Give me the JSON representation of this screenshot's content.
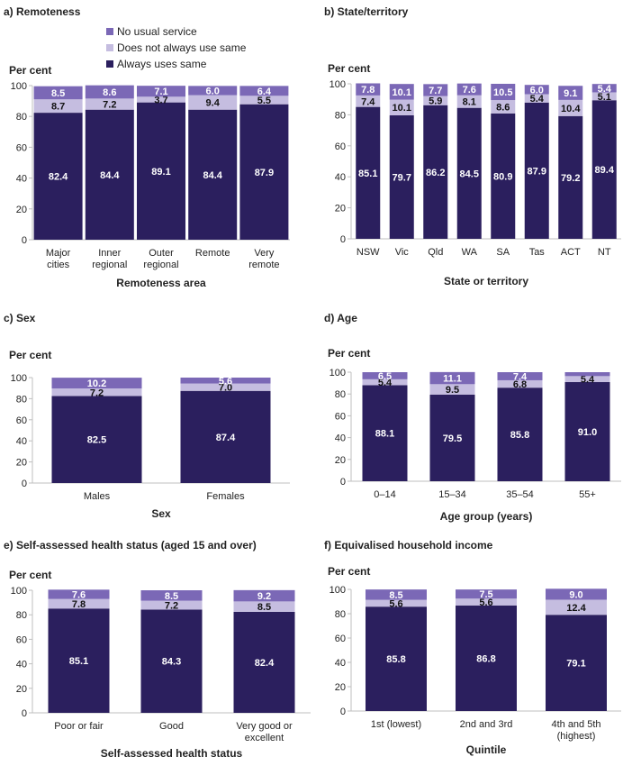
{
  "colors": {
    "always": "#2b1f5e",
    "not_always": "#c5bde0",
    "no_service": "#7b68b6",
    "axis": "#bfbfbf",
    "text": "#222222"
  },
  "legend": [
    {
      "key": "no_service",
      "label": "No usual service"
    },
    {
      "key": "not_always",
      "label": "Does not always use same"
    },
    {
      "key": "always",
      "label": "Always uses same"
    }
  ],
  "chart_data": [
    {
      "type": "bar",
      "title": "a) Remoteness",
      "ylabel": "Per cent",
      "xlabel": "Remoteness area",
      "ylim": [
        0,
        100
      ],
      "yticks": [
        0,
        20,
        40,
        60,
        80,
        100
      ],
      "categories": [
        [
          "Major",
          "cities"
        ],
        [
          "Inner",
          "regional"
        ],
        [
          "Outer",
          "regional"
        ],
        [
          "Remote"
        ],
        [
          "Very",
          "remote"
        ]
      ],
      "series": [
        {
          "name": "Always uses same",
          "key": "always",
          "values": [
            82.4,
            84.4,
            89.1,
            84.4,
            87.9
          ]
        },
        {
          "name": "Does not always use same",
          "key": "not_always",
          "values": [
            8.7,
            7.2,
            3.7,
            9.4,
            5.5
          ]
        },
        {
          "name": "No usual service",
          "key": "no_service",
          "values": [
            8.5,
            8.6,
            7.1,
            6.0,
            6.4
          ]
        }
      ]
    },
    {
      "type": "bar",
      "title": "b) State/territory",
      "ylabel": "Per cent",
      "xlabel": "State or territory",
      "ylim": [
        0,
        100
      ],
      "yticks": [
        0,
        20,
        40,
        60,
        80,
        100
      ],
      "categories": [
        [
          "NSW"
        ],
        [
          "Vic"
        ],
        [
          "Qld"
        ],
        [
          "WA"
        ],
        [
          "SA"
        ],
        [
          "Tas"
        ],
        [
          "ACT"
        ],
        [
          "NT"
        ]
      ],
      "series": [
        {
          "name": "Always uses same",
          "key": "always",
          "values": [
            85.1,
            79.7,
            86.2,
            84.5,
            80.9,
            87.9,
            79.2,
            89.4
          ]
        },
        {
          "name": "Does not always use same",
          "key": "not_always",
          "values": [
            7.4,
            10.1,
            5.9,
            8.1,
            8.6,
            5.4,
            10.4,
            5.1
          ]
        },
        {
          "name": "No usual service",
          "key": "no_service",
          "values": [
            7.8,
            10.1,
            7.7,
            7.6,
            10.5,
            6.0,
            9.1,
            5.4
          ]
        }
      ]
    },
    {
      "type": "bar",
      "title": "c) Sex",
      "ylabel": "Per cent",
      "xlabel": "Sex",
      "ylim": [
        0,
        100
      ],
      "yticks": [
        0,
        20,
        40,
        60,
        80,
        100
      ],
      "categories": [
        [
          "Males"
        ],
        [
          "Females"
        ]
      ],
      "series": [
        {
          "name": "Always uses same",
          "key": "always",
          "values": [
            82.5,
            87.4
          ]
        },
        {
          "name": "Does not always use same",
          "key": "not_always",
          "values": [
            7.2,
            7.0
          ]
        },
        {
          "name": "No usual service",
          "key": "no_service",
          "values": [
            10.2,
            5.6
          ]
        }
      ]
    },
    {
      "type": "bar",
      "title": "d) Age",
      "ylabel": "Per cent",
      "xlabel": "Age group (years)",
      "ylim": [
        0,
        100
      ],
      "yticks": [
        0,
        20,
        40,
        60,
        80,
        100
      ],
      "categories": [
        [
          "0–14"
        ],
        [
          "15–34"
        ],
        [
          "35–54"
        ],
        [
          "55+"
        ]
      ],
      "series": [
        {
          "name": "Always uses same",
          "key": "always",
          "values": [
            88.1,
            79.5,
            85.8,
            91.0
          ]
        },
        {
          "name": "Does not always use same",
          "key": "not_always",
          "values": [
            5.4,
            9.5,
            6.8,
            5.4
          ]
        },
        {
          "name": "No usual service",
          "key": "no_service",
          "values": [
            6.5,
            11.1,
            7.4,
            3.6
          ]
        }
      ]
    },
    {
      "type": "bar",
      "title": "e) Self-assessed health status (aged 15 and over)",
      "ylabel": "Per cent",
      "xlabel": "Self-assessed health status",
      "ylim": [
        0,
        100
      ],
      "yticks": [
        0,
        20,
        40,
        60,
        80,
        100
      ],
      "categories": [
        [
          "Poor or fair"
        ],
        [
          "Good"
        ],
        [
          "Very good or",
          "excellent"
        ]
      ],
      "series": [
        {
          "name": "Always uses same",
          "key": "always",
          "values": [
            85.1,
            84.3,
            82.4
          ]
        },
        {
          "name": "Does not always use same",
          "key": "not_always",
          "values": [
            7.8,
            7.2,
            8.5
          ]
        },
        {
          "name": "No usual service",
          "key": "no_service",
          "values": [
            7.6,
            8.5,
            9.2
          ]
        }
      ]
    },
    {
      "type": "bar",
      "title": "f) Equivalised household income",
      "ylabel": "Per cent",
      "xlabel": "Quintile",
      "ylim": [
        0,
        100
      ],
      "yticks": [
        0,
        20,
        40,
        60,
        80,
        100
      ],
      "categories": [
        [
          "1st (lowest)"
        ],
        [
          "2nd and 3rd"
        ],
        [
          "4th and 5th",
          "(highest)"
        ]
      ],
      "series": [
        {
          "name": "Always uses same",
          "key": "always",
          "values": [
            85.8,
            86.8,
            79.1
          ]
        },
        {
          "name": "Does not always use same",
          "key": "not_always",
          "values": [
            5.6,
            5.6,
            12.4
          ]
        },
        {
          "name": "No usual service",
          "key": "no_service",
          "values": [
            8.5,
            7.5,
            9.0
          ]
        }
      ]
    }
  ]
}
